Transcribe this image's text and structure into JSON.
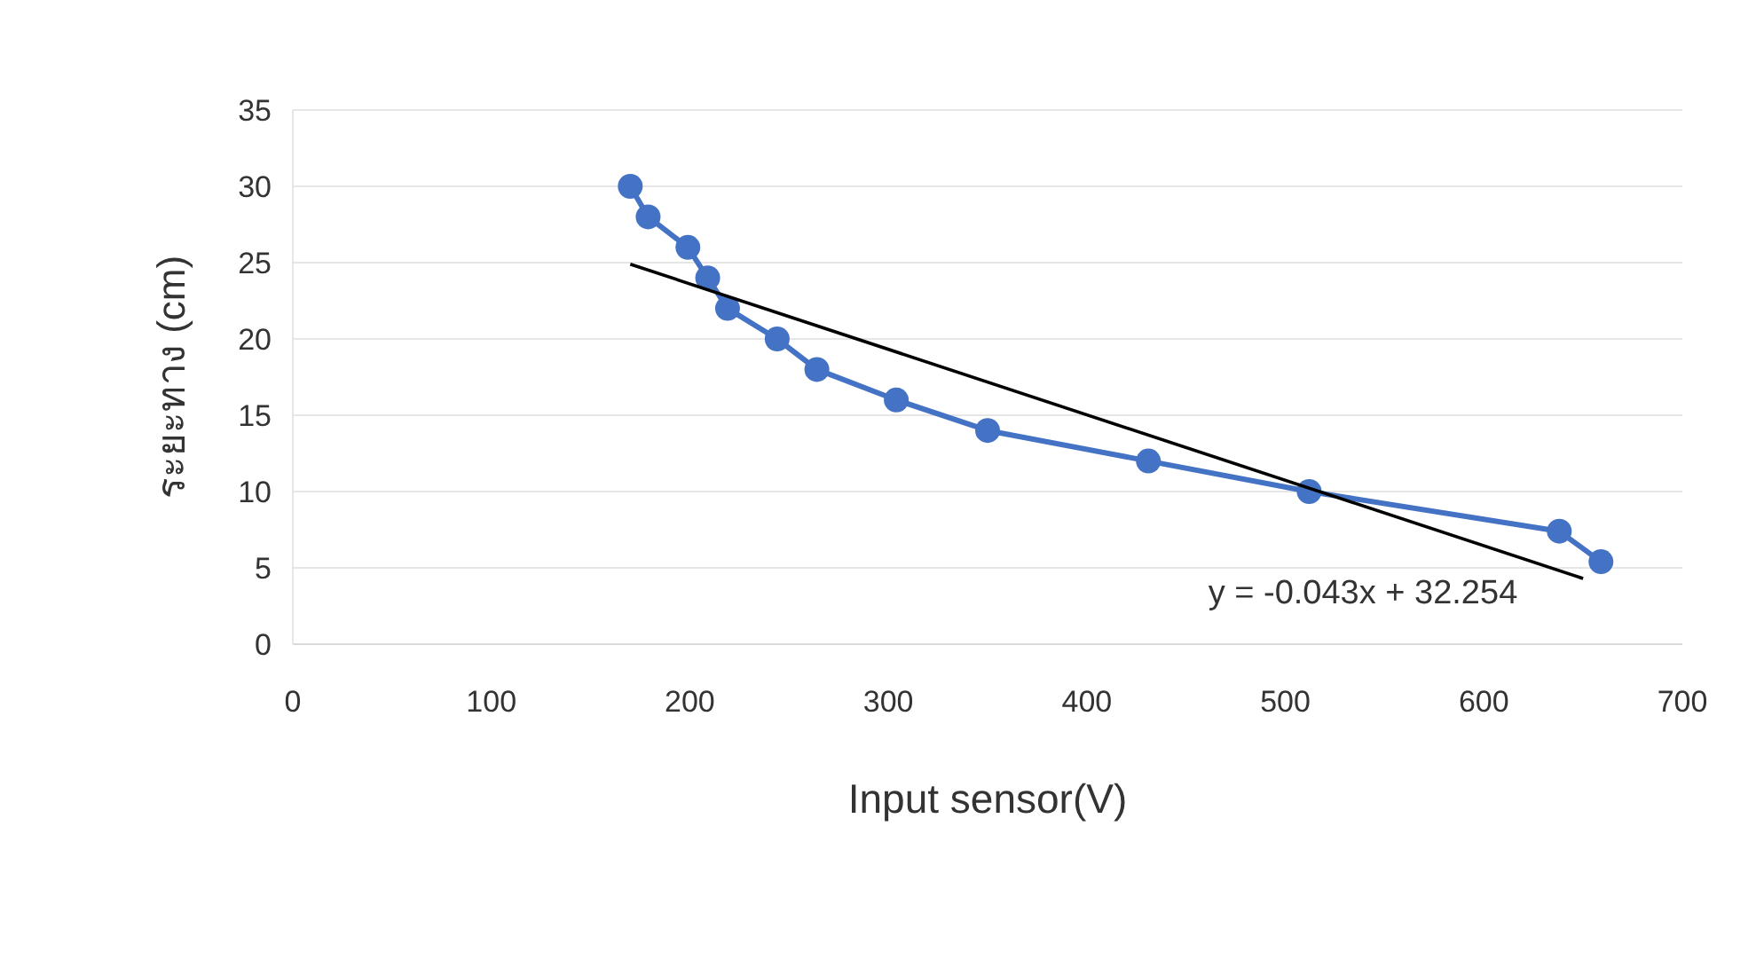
{
  "chart_data": {
    "type": "line",
    "xlabel": "Input sensor(V)",
    "ylabel": "ระยะทาง (cm)",
    "series": [
      {
        "color": "#4472c4",
        "marker": "circle",
        "x": [
          170,
          179,
          199,
          209,
          219,
          244,
          264,
          304,
          350,
          431,
          512,
          638,
          659
        ],
        "values": [
          30,
          28,
          26,
          24,
          22,
          20,
          18,
          16,
          14,
          12,
          10,
          7.4,
          5.4
        ]
      },
      {
        "type": "line",
        "color": "#000000",
        "marker": "none",
        "x": [
          170,
          650
        ],
        "values": [
          24.9,
          4.3
        ]
      }
    ],
    "annotations": [
      "y = -0.043x + 32.254"
    ],
    "xlim": [
      0,
      700
    ],
    "xticks": [
      0,
      100,
      200,
      300,
      400,
      500,
      600,
      700
    ],
    "ylim": [
      0,
      35
    ],
    "yticks": [
      0,
      5,
      10,
      15,
      20,
      25,
      30,
      35
    ],
    "grid": "y"
  }
}
